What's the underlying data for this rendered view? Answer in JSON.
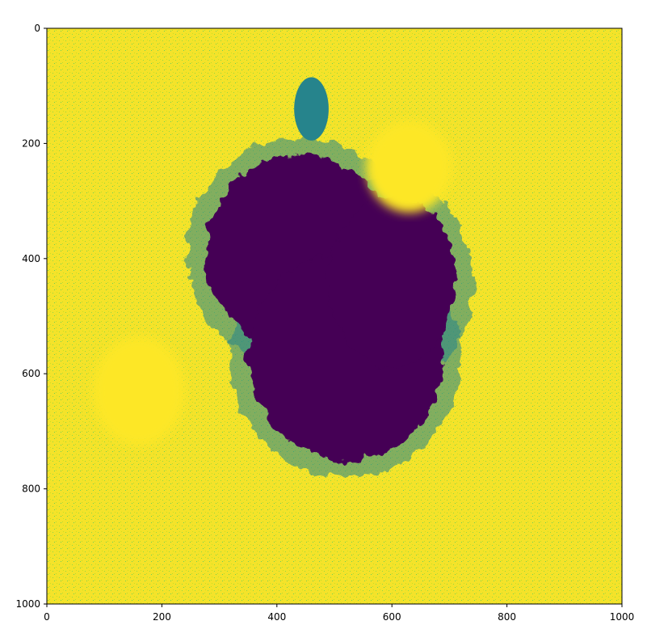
{
  "chart_data": {
    "type": "heatmap",
    "title": "",
    "xlabel": "",
    "ylabel": "",
    "xlim": [
      0,
      1000
    ],
    "ylim": [
      1000,
      0
    ],
    "x_ticks": [
      0,
      200,
      400,
      600,
      800,
      1000
    ],
    "y_ticks": [
      0,
      200,
      400,
      600,
      800,
      1000
    ],
    "x_tick_labels": [
      "0",
      "200",
      "400",
      "600",
      "800",
      "1000"
    ],
    "y_tick_labels": [
      "0",
      "200",
      "400",
      "600",
      "800",
      "1000"
    ],
    "colormap": "viridis",
    "colors": {
      "background": "#fde725",
      "low": "#440154",
      "mid": "#21918c",
      "high": "#fde725"
    },
    "regions": [
      {
        "name": "dark-blob-upper",
        "cx": 440,
        "cy": 390,
        "rx": 165,
        "ry": 170,
        "level": 0.0
      },
      {
        "name": "dark-blob-lower",
        "cx": 520,
        "cy": 570,
        "rx": 170,
        "ry": 180,
        "level": 0.0
      },
      {
        "name": "dark-lobe",
        "cx": 600,
        "cy": 440,
        "rx": 110,
        "ry": 150,
        "level": 0.0
      },
      {
        "name": "bright-spot-right",
        "cx": 630,
        "cy": 240,
        "rx": 75,
        "ry": 80,
        "level": 1.0
      },
      {
        "name": "bright-spot-left",
        "cx": 160,
        "cy": 630,
        "rx": 80,
        "ry": 95,
        "level": 1.0
      },
      {
        "name": "teal-streak",
        "cx": 460,
        "cy": 140,
        "rx": 30,
        "ry": 55,
        "level": 0.45
      }
    ]
  }
}
